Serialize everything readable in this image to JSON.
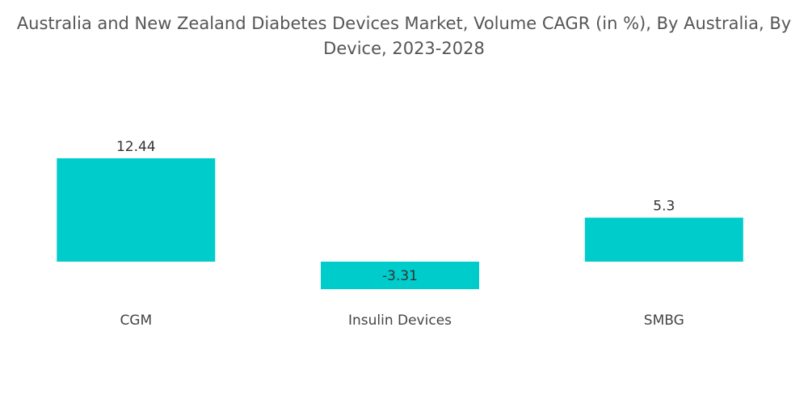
{
  "chart_data": {
    "type": "bar",
    "title": "Australia and New Zealand Diabetes Devices Market, Volume CAGR (in %), By Australia, By Device, 2023-2028",
    "title_lines": [
      "Australia and New Zealand Diabetes Devices Market, Volume CAGR (in %), By Australia, By",
      "Device, 2023-2028"
    ],
    "categories": [
      "CGM",
      "Insulin Devices",
      "SMBG"
    ],
    "values": [
      12.44,
      -3.31,
      5.3
    ],
    "value_labels": [
      "12.44",
      "-3.31",
      "5.3"
    ],
    "xlabel": "",
    "ylabel": "",
    "ylim": [
      -3.31,
      12.44
    ],
    "grid": false,
    "legend": "none",
    "bar_color": "#00CCCC"
  }
}
